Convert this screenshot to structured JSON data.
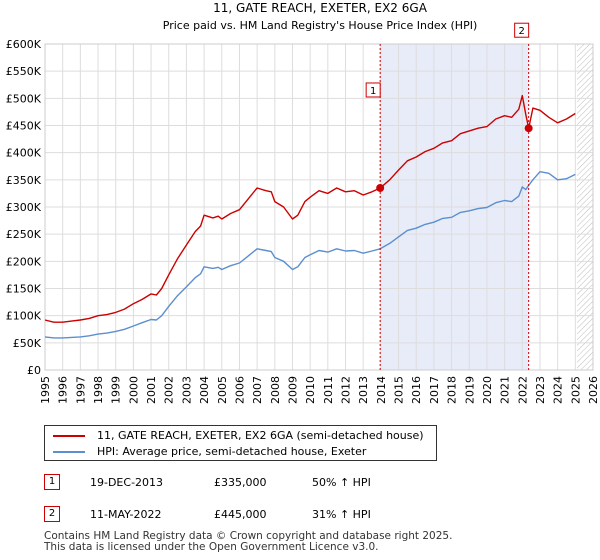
{
  "chart_data": {
    "type": "line",
    "title": "11, GATE REACH, EXETER, EX2 6GA",
    "subtitle": "Price paid vs. HM Land Registry's House Price Index (HPI)",
    "xlabel": "",
    "ylabel": "",
    "xlim": [
      1995,
      2026
    ],
    "ylim": [
      0,
      600000
    ],
    "grid": true,
    "y_ticks": [
      0,
      50000,
      100000,
      150000,
      200000,
      250000,
      300000,
      350000,
      400000,
      450000,
      500000,
      550000,
      600000
    ],
    "y_tick_labels": [
      "£0",
      "£50K",
      "£100K",
      "£150K",
      "£200K",
      "£250K",
      "£300K",
      "£350K",
      "£400K",
      "£450K",
      "£500K",
      "£550K",
      "£600K"
    ],
    "x_ticks": [
      1995,
      1996,
      1997,
      1998,
      1999,
      2000,
      2001,
      2002,
      2003,
      2004,
      2005,
      2006,
      2007,
      2008,
      2009,
      2010,
      2011,
      2012,
      2013,
      2014,
      2015,
      2016,
      2017,
      2018,
      2019,
      2020,
      2021,
      2022,
      2023,
      2024,
      2025,
      2026
    ],
    "x_tick_labels": [
      "1995",
      "1996",
      "1997",
      "1998",
      "1999",
      "2000",
      "2001",
      "2002",
      "2003",
      "2004",
      "2005",
      "2006",
      "2007",
      "2008",
      "2009",
      "2010",
      "2011",
      "2012",
      "2013",
      "2014",
      "2015",
      "2016",
      "2017",
      "2018",
      "2019",
      "2020",
      "2021",
      "2022",
      "2023",
      "2024",
      "2025",
      "2026"
    ],
    "shaded_period": [
      2013.96,
      2022.36
    ],
    "future_hatch_start": 2025.1,
    "series": [
      {
        "name": "11, GATE REACH, EXETER, EX2 6GA (semi-detached house)",
        "color": "#cc0000",
        "x": [
          1995.0,
          1995.5,
          1996.0,
          1996.5,
          1997.0,
          1997.5,
          1998.0,
          1998.5,
          1999.0,
          1999.5,
          2000.0,
          2000.5,
          2001.0,
          2001.3,
          2001.6,
          2002.0,
          2002.5,
          2003.0,
          2003.5,
          2003.8,
          2004.0,
          2004.5,
          2004.8,
          2005.0,
          2005.5,
          2006.0,
          2006.5,
          2007.0,
          2007.5,
          2007.8,
          2008.0,
          2008.5,
          2009.0,
          2009.3,
          2009.7,
          2010.0,
          2010.5,
          2011.0,
          2011.5,
          2012.0,
          2012.5,
          2013.0,
          2013.5,
          2013.96,
          2014.5,
          2015.0,
          2015.5,
          2016.0,
          2016.5,
          2017.0,
          2017.5,
          2018.0,
          2018.5,
          2019.0,
          2019.5,
          2020.0,
          2020.5,
          2021.0,
          2021.4,
          2021.8,
          2022.0,
          2022.2,
          2022.36,
          2022.6,
          2023.0,
          2023.5,
          2024.0,
          2024.5,
          2025.0
        ],
        "values": [
          92000,
          88000,
          88000,
          90000,
          92000,
          95000,
          100000,
          102000,
          106000,
          112000,
          122000,
          130000,
          140000,
          138000,
          150000,
          175000,
          205000,
          230000,
          255000,
          265000,
          285000,
          280000,
          283000,
          278000,
          288000,
          295000,
          315000,
          335000,
          330000,
          328000,
          310000,
          300000,
          278000,
          285000,
          310000,
          318000,
          330000,
          325000,
          335000,
          328000,
          330000,
          322000,
          328000,
          335000,
          350000,
          368000,
          385000,
          392000,
          402000,
          408000,
          418000,
          422000,
          435000,
          440000,
          445000,
          448000,
          462000,
          468000,
          465000,
          480000,
          505000,
          470000,
          445000,
          482000,
          478000,
          465000,
          455000,
          462000,
          472000
        ]
      },
      {
        "name": "HPI: Average price, semi-detached house, Exeter",
        "color": "#5b8fcf",
        "x": [
          1995.0,
          1995.5,
          1996.0,
          1996.5,
          1997.0,
          1997.5,
          1998.0,
          1998.5,
          1999.0,
          1999.5,
          2000.0,
          2000.5,
          2001.0,
          2001.3,
          2001.6,
          2002.0,
          2002.5,
          2003.0,
          2003.5,
          2003.8,
          2004.0,
          2004.5,
          2004.8,
          2005.0,
          2005.5,
          2006.0,
          2006.5,
          2007.0,
          2007.5,
          2007.8,
          2008.0,
          2008.5,
          2009.0,
          2009.3,
          2009.7,
          2010.0,
          2010.5,
          2011.0,
          2011.5,
          2012.0,
          2012.5,
          2013.0,
          2013.5,
          2013.96,
          2014.5,
          2015.0,
          2015.5,
          2016.0,
          2016.5,
          2017.0,
          2017.5,
          2018.0,
          2018.5,
          2019.0,
          2019.5,
          2020.0,
          2020.5,
          2021.0,
          2021.4,
          2021.8,
          2022.0,
          2022.2,
          2022.36,
          2022.6,
          2023.0,
          2023.5,
          2024.0,
          2024.5,
          2025.0
        ],
        "values": [
          61000,
          59000,
          59000,
          60000,
          61000,
          63000,
          66000,
          68000,
          71000,
          75000,
          81000,
          87000,
          93000,
          92000,
          100000,
          117000,
          137000,
          153000,
          170000,
          177000,
          190000,
          187000,
          189000,
          185000,
          192000,
          197000,
          210000,
          223000,
          220000,
          218000,
          207000,
          200000,
          185000,
          190000,
          207000,
          212000,
          220000,
          217000,
          223000,
          219000,
          220000,
          215000,
          219000,
          223000,
          233000,
          245000,
          257000,
          261000,
          268000,
          272000,
          279000,
          281000,
          290000,
          293000,
          297000,
          299000,
          308000,
          312000,
          310000,
          320000,
          337000,
          332000,
          340000,
          350000,
          365000,
          362000,
          350000,
          352000,
          360000
        ]
      }
    ],
    "annotations": [
      {
        "label": "1",
        "x": 2013.96,
        "value": 335000,
        "series": 0
      },
      {
        "label": "2",
        "x": 2022.36,
        "value": 445000,
        "series": 0
      }
    ]
  },
  "legend": {
    "entries": [
      {
        "label": "11, GATE REACH, EXETER, EX2 6GA (semi-detached house)",
        "color": "#cc0000"
      },
      {
        "label": "HPI: Average price, semi-detached house, Exeter",
        "color": "#5b8fcf"
      }
    ]
  },
  "sales": [
    {
      "num": "1",
      "date": "19-DEC-2013",
      "price": "£335,000",
      "hpi": "50% ↑ HPI"
    },
    {
      "num": "2",
      "date": "11-MAY-2022",
      "price": "£445,000",
      "hpi": "31% ↑ HPI"
    }
  ],
  "footer": {
    "line1": "Contains HM Land Registry data © Crown copyright and database right 2025.",
    "line2": "This data is licensed under the Open Government Licence v3.0."
  }
}
